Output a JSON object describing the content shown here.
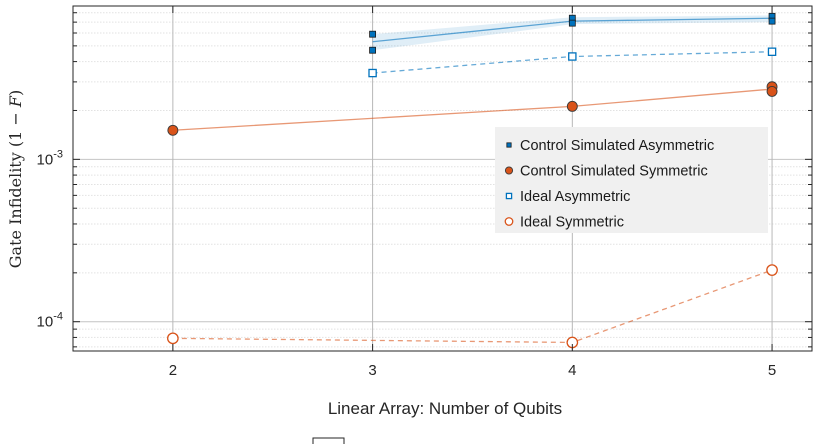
{
  "chart_data": {
    "type": "scatter",
    "xlabel": "Linear Array: Number of Qubits",
    "ylabel": "Gate Infidelity (1 − F)",
    "xlim": [
      1.5,
      5.2
    ],
    "ylim": [
      6.6e-05,
      0.0088
    ],
    "y_scale": "log",
    "grid": true,
    "legend_position": "center-right",
    "x_ticks": [
      {
        "value": 2,
        "label": "2"
      },
      {
        "value": 3,
        "label": "3"
      },
      {
        "value": 4,
        "label": "4"
      },
      {
        "value": 5,
        "label": "5"
      }
    ],
    "y_ticks": [
      {
        "value": 0.0001,
        "base": "10",
        "exp": "-4"
      },
      {
        "value": 0.001,
        "base": "10",
        "exp": "-3"
      }
    ],
    "series": [
      {
        "name": "Control Simulated Asymmetric",
        "marker": "square",
        "filled": true,
        "color": "#0072BD",
        "line": "solid",
        "points": [
          [
            3,
            0.0059
          ],
          [
            3,
            0.0047
          ],
          [
            4,
            0.0074
          ],
          [
            4,
            0.0069
          ],
          [
            5,
            0.0076
          ],
          [
            5,
            0.0071
          ]
        ],
        "trend": [
          [
            3,
            0.0053
          ],
          [
            4,
            0.0071
          ],
          [
            5,
            0.0074
          ]
        ],
        "band_lower": [
          0.0047,
          0.0068,
          0.007
        ],
        "band_upper": [
          0.0059,
          0.0075,
          0.0077
        ]
      },
      {
        "name": "Control Simulated Symmetric",
        "marker": "circle",
        "filled": true,
        "color": "#D95319",
        "line": "solid",
        "points": [
          [
            2,
            0.00151
          ],
          [
            4,
            0.00212
          ],
          [
            5,
            0.0028
          ],
          [
            5,
            0.00262
          ]
        ],
        "trend": [
          [
            2,
            0.00151
          ],
          [
            4,
            0.00212
          ],
          [
            5,
            0.00271
          ]
        ]
      },
      {
        "name": "Ideal Asymmetric",
        "marker": "square",
        "filled": false,
        "color": "#0072BD",
        "line": "dashed",
        "points": [
          [
            3,
            0.0034
          ],
          [
            4,
            0.0043
          ],
          [
            5,
            0.0046
          ]
        ],
        "trend": [
          [
            3,
            0.0034
          ],
          [
            4,
            0.0043
          ],
          [
            5,
            0.0046
          ]
        ]
      },
      {
        "name": "Ideal Symmetric",
        "marker": "circle",
        "filled": false,
        "color": "#D95319",
        "line": "dashed",
        "points": [
          [
            2,
            7.9e-05
          ],
          [
            4,
            7.45e-05
          ],
          [
            5,
            0.000208
          ]
        ],
        "trend": [
          [
            2,
            7.9e-05
          ],
          [
            4,
            7.45e-05
          ],
          [
            5,
            0.000208
          ]
        ]
      }
    ]
  }
}
